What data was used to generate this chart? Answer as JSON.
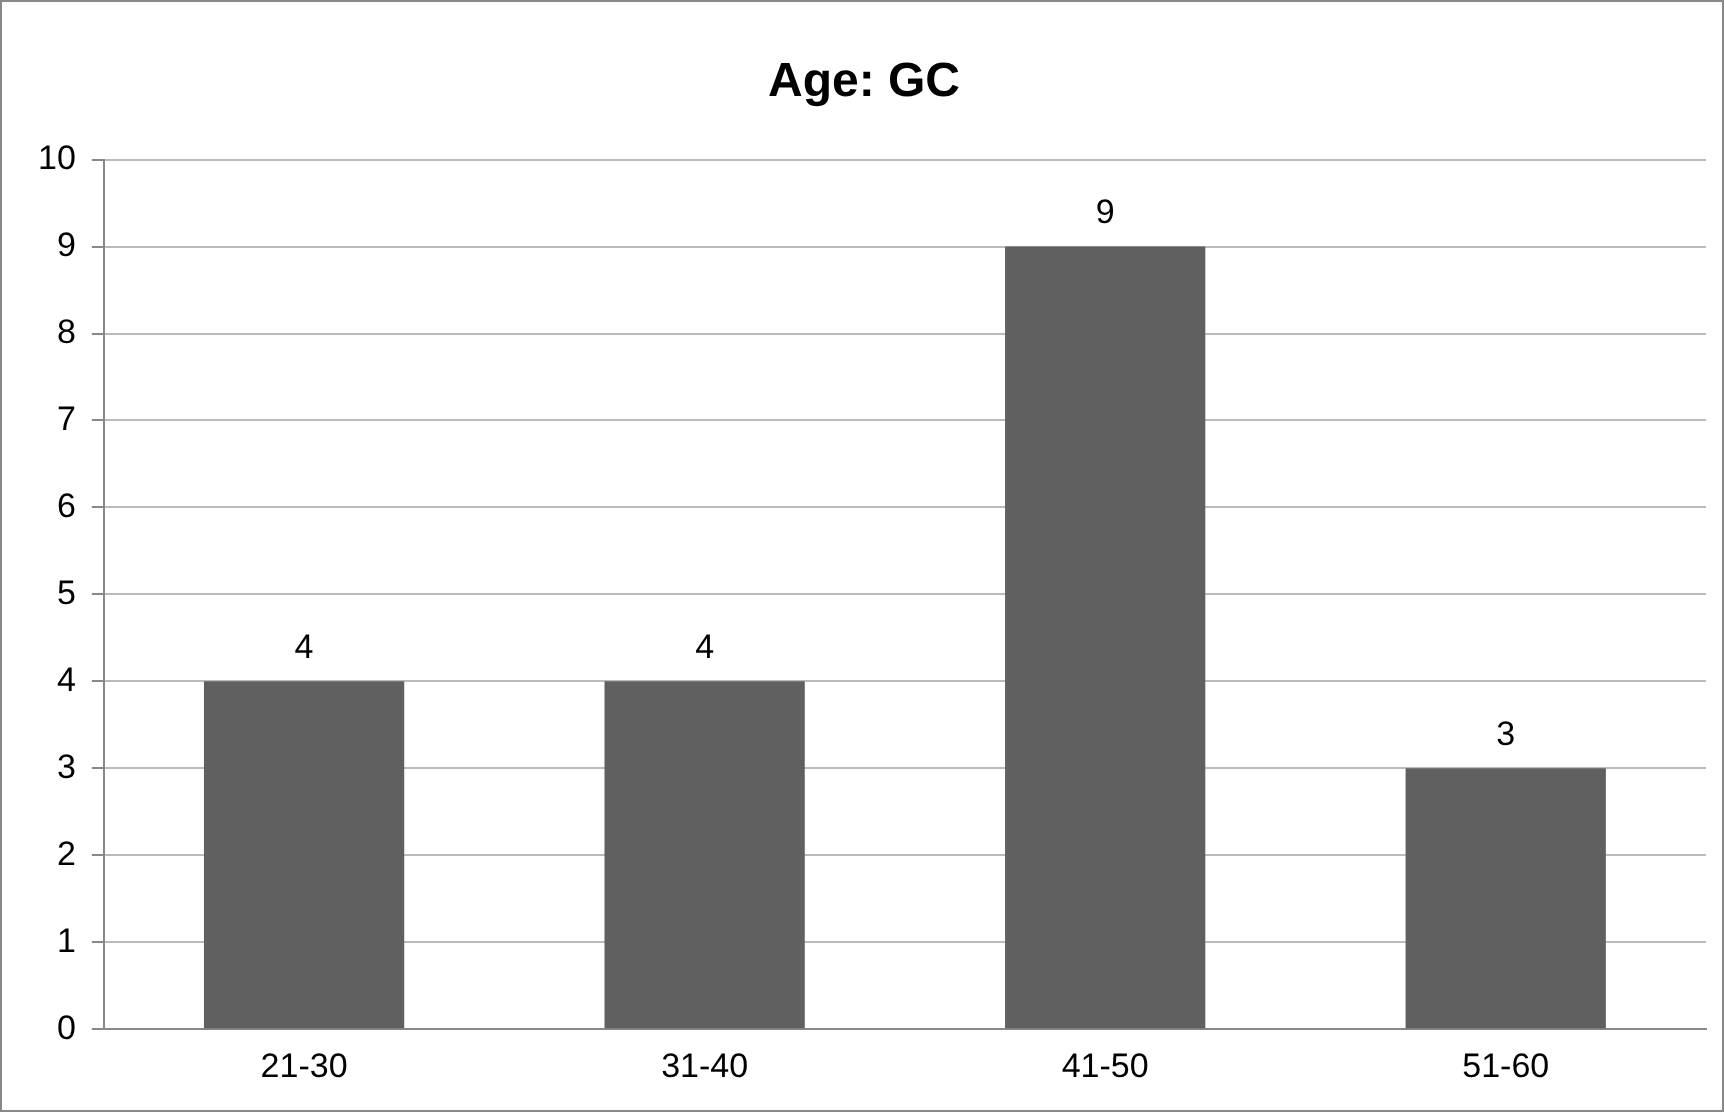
{
  "chart_data": {
    "type": "bar",
    "title": "Age: GC",
    "categories": [
      "21-30",
      "31-40",
      "41-50",
      "51-60"
    ],
    "values": [
      4,
      4,
      9,
      3
    ],
    "color": "#606060",
    "ylim": [
      0,
      10
    ],
    "yticks": [
      0,
      1,
      2,
      3,
      4,
      5,
      6,
      7,
      8,
      9,
      10
    ],
    "grid": "y",
    "legend": false,
    "data_labels": true
  }
}
